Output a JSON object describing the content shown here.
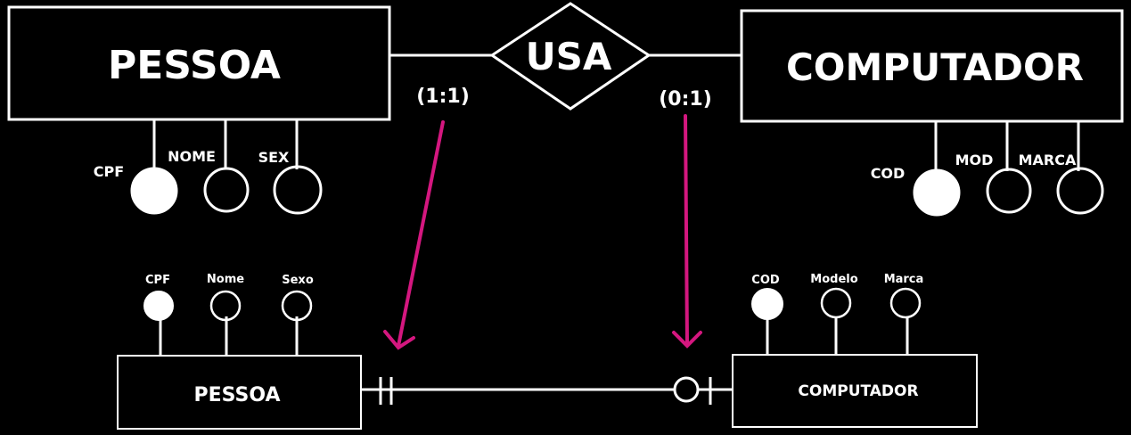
{
  "colors": {
    "background": "#000000",
    "stroke": "#ffffff",
    "arrow": "#d4177f"
  },
  "conceptual": {
    "entity_left": "PESSOA",
    "relationship": "USA",
    "entity_right": "COMPUTADOR",
    "card_left": "(1:1)",
    "card_right": "(0:1)",
    "attrs_left": [
      "CPF",
      "NOME",
      "SEX"
    ],
    "attrs_right": [
      "COD",
      "MOD",
      "MARCA"
    ]
  },
  "logical": {
    "entity_left": "PESSOA",
    "entity_right": "COMPUTADOR",
    "attrs_left": [
      "CPF",
      "Nome",
      "Sexo"
    ],
    "attrs_right": [
      "COD",
      "Modelo",
      "Marca"
    ]
  }
}
